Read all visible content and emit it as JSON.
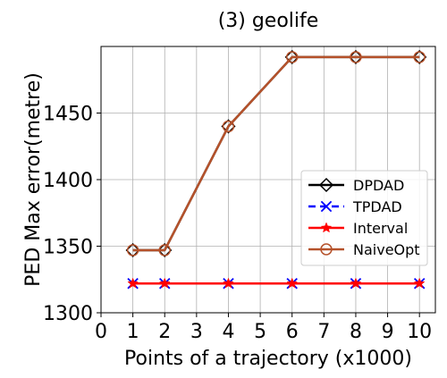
{
  "chart_data": {
    "type": "line",
    "title": "(3) geolife",
    "xlabel": "Points of a trajectory (x1000)",
    "ylabel": "PED Max error(metre)",
    "x": [
      1,
      2,
      4,
      6,
      8,
      10
    ],
    "xlim": [
      0,
      10.5
    ],
    "ylim": [
      1300,
      1500
    ],
    "xticks": [
      "0",
      "1",
      "2",
      "3",
      "4",
      "5",
      "6",
      "7",
      "8",
      "9",
      "10"
    ],
    "yticks": [
      "1300",
      "1350",
      "1400",
      "1450"
    ],
    "grid": true,
    "legend_position": "center-right",
    "series": [
      {
        "name": "DPDAD",
        "values": [
          1347,
          1347,
          1440,
          1492,
          1492,
          1492
        ],
        "color": "#000000",
        "marker": "diamond",
        "dash": "solid"
      },
      {
        "name": "TPDAD",
        "values": [
          1322,
          1322,
          1322,
          1322,
          1322,
          1322
        ],
        "color": "#0000ff",
        "marker": "x",
        "dash": "dashed"
      },
      {
        "name": "Interval",
        "values": [
          1322,
          1322,
          1322,
          1322,
          1322,
          1322
        ],
        "color": "#ff0000",
        "marker": "star",
        "dash": "solid"
      },
      {
        "name": "NaiveOpt",
        "values": [
          1347,
          1347,
          1440,
          1492,
          1492,
          1492
        ],
        "color": "#b5522b",
        "marker": "circle",
        "dash": "solid"
      }
    ]
  }
}
